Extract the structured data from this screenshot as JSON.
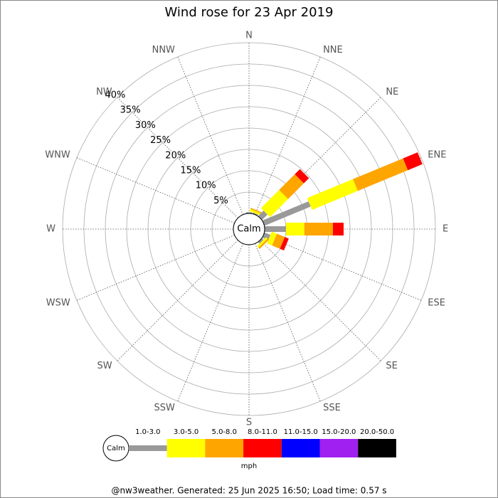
{
  "chart_data": {
    "type": "windrose",
    "title": "Wind rose for 23 Apr 2019",
    "categories": [
      "N",
      "NNE",
      "NE",
      "ENE",
      "E",
      "ESE",
      "SE",
      "SSE",
      "S",
      "SSW",
      "SW",
      "WSW",
      "W",
      "WNW",
      "NW",
      "NNW"
    ],
    "calm_label": "Calm",
    "unit": "mph",
    "rlim": [
      0,
      40
    ],
    "rticks": [
      {
        "value": 5,
        "label": "5%"
      },
      {
        "value": 10,
        "label": "10%"
      },
      {
        "value": 15,
        "label": "15%"
      },
      {
        "value": 20,
        "label": "20%"
      },
      {
        "value": 25,
        "label": "25%"
      },
      {
        "value": 30,
        "label": "30%"
      },
      {
        "value": 35,
        "label": "35%"
      },
      {
        "value": 40,
        "label": "40%"
      }
    ],
    "series": [
      {
        "name": "1.0-3.0",
        "color": "#999999",
        "values": [
          0.3,
          0.3,
          1.8,
          11.7,
          5.0,
          1.5,
          0.5,
          0,
          0,
          0,
          0,
          0,
          0,
          0,
          0,
          0
        ]
      },
      {
        "name": "3.0-5.0",
        "color": "#ffff00",
        "values": [
          0,
          0.5,
          6.0,
          11.6,
          4.3,
          1.3,
          0.5,
          0,
          0,
          0,
          0,
          0,
          0,
          0,
          0,
          0
        ]
      },
      {
        "name": "5.0-8.0",
        "color": "#ffa500",
        "values": [
          0,
          0.3,
          5.2,
          12.7,
          6.7,
          2.0,
          0.4,
          0,
          0,
          0,
          0,
          0,
          0,
          0,
          0,
          0
        ]
      },
      {
        "name": "8.0-11.0",
        "color": "#ff0000",
        "values": [
          0,
          0,
          1.7,
          3.7,
          2.5,
          1.0,
          0,
          0,
          0,
          0,
          0,
          0,
          0,
          0,
          0,
          0
        ]
      },
      {
        "name": "11.0-15.0",
        "color": "#0000ff",
        "values": [
          0,
          0,
          0,
          0,
          0,
          0,
          0,
          0,
          0,
          0,
          0,
          0,
          0,
          0,
          0,
          0
        ]
      },
      {
        "name": "15.0-20.0",
        "color": "#a020f0",
        "values": [
          0,
          0,
          0,
          0,
          0,
          0,
          0,
          0,
          0,
          0,
          0,
          0,
          0,
          0,
          0,
          0
        ]
      },
      {
        "name": "20.0-50.0",
        "color": "#000000",
        "values": [
          0,
          0,
          0,
          0,
          0,
          0,
          0,
          0,
          0,
          0,
          0,
          0,
          0,
          0,
          0,
          0
        ]
      }
    ],
    "footer": "@nw3weather. Generated: 25 Jun 2025 16:50; Load time: 0.57 s"
  }
}
